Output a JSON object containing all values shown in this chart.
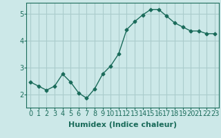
{
  "x": [
    0,
    1,
    2,
    3,
    4,
    5,
    6,
    7,
    8,
    9,
    10,
    11,
    12,
    13,
    14,
    15,
    16,
    17,
    18,
    19,
    20,
    21,
    22,
    23
  ],
  "y": [
    2.45,
    2.3,
    2.15,
    2.3,
    2.75,
    2.45,
    2.05,
    1.85,
    2.2,
    2.75,
    3.05,
    3.5,
    4.4,
    4.7,
    4.95,
    5.15,
    5.15,
    4.9,
    4.65,
    4.5,
    4.35,
    4.35,
    4.25,
    4.25
  ],
  "line_color": "#1a6b5a",
  "marker": "D",
  "marker_size": 2.5,
  "bg_color": "#cce8e8",
  "grid_color": "#aacccc",
  "xlabel": "Humidex (Indice chaleur)",
  "ylim": [
    1.5,
    5.4
  ],
  "yticks": [
    2,
    3,
    4,
    5
  ],
  "xticks": [
    0,
    1,
    2,
    3,
    4,
    5,
    6,
    7,
    8,
    9,
    10,
    11,
    12,
    13,
    14,
    15,
    16,
    17,
    18,
    19,
    20,
    21,
    22,
    23
  ],
  "xlabel_fontsize": 8,
  "tick_fontsize": 7,
  "text_color": "#1a6b5a"
}
